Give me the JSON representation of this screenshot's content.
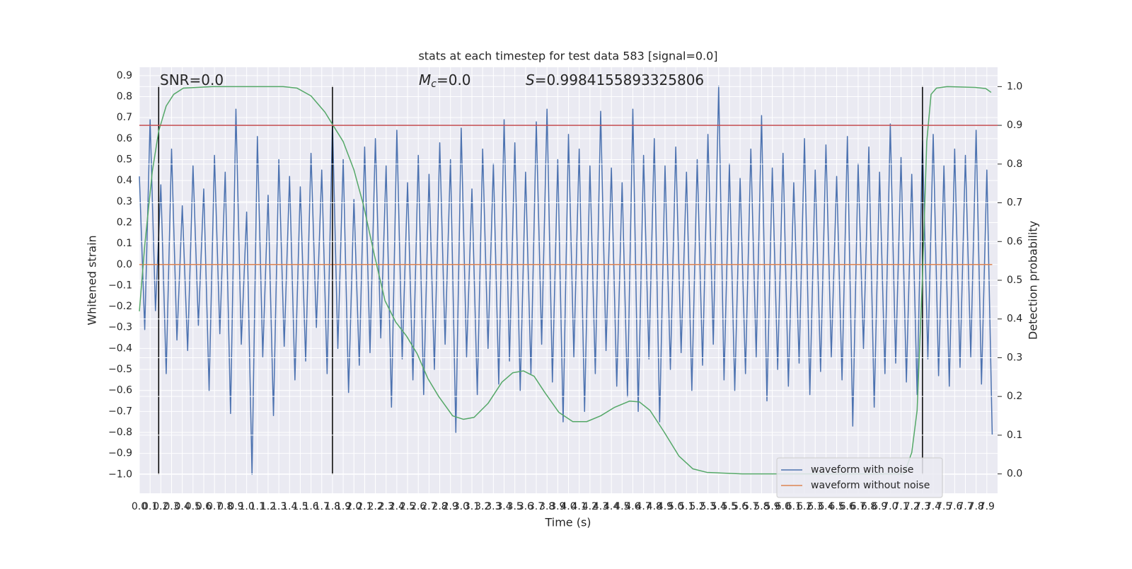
{
  "chart_data": {
    "type": "line",
    "title": "stats at each timestep for test data 583 [signal=0.0]",
    "x_label": "Time (s)",
    "y_label": "Whitened strain",
    "y2_label": "Detection probability",
    "annotations": [
      {
        "text": "SNR=0.0"
      },
      {
        "symbol": "M",
        "subscript": "c",
        "text": "=0.0"
      },
      {
        "symbol": "S",
        "text": "=0.9984155893325806"
      }
    ],
    "xlim": [
      0,
      8.0
    ],
    "ylim": [
      -1.09,
      0.94
    ],
    "y2lim": [
      -0.05,
      1.05
    ],
    "grid": true,
    "legend": "lower right",
    "xticks": [
      {
        "value": 0,
        "label": "0.0"
      },
      0.1,
      0.2,
      0.3,
      0.4,
      0.5,
      0.6,
      0.7,
      0.8,
      0.9,
      {
        "value": 1,
        "label": "1.0"
      },
      1.1,
      1.2,
      1.3,
      1.4,
      1.5,
      1.6,
      1.7,
      1.8,
      1.9,
      {
        "value": 2,
        "label": "2.0"
      },
      2.1,
      2.2,
      2.3,
      2.4,
      2.5,
      2.6,
      2.7,
      2.8,
      2.9,
      {
        "value": 3,
        "label": "3.0"
      },
      3.1,
      3.2,
      3.3,
      3.4,
      3.5,
      3.6,
      3.7,
      3.8,
      3.9,
      {
        "value": 4,
        "label": "4.0"
      },
      4.1,
      4.2,
      4.3,
      4.4,
      4.5,
      4.6,
      4.7,
      4.8,
      4.9,
      {
        "value": 5,
        "label": "5.0"
      },
      5.1,
      5.2,
      5.3,
      5.4,
      5.5,
      5.6,
      5.7,
      5.8,
      5.9,
      {
        "value": 6,
        "label": "6.0"
      },
      6.1,
      6.2,
      6.3,
      6.4,
      6.5,
      6.6,
      6.7,
      6.8,
      6.9,
      {
        "value": 7,
        "label": "7.0"
      },
      7.1,
      7.2,
      7.3,
      7.4,
      7.5,
      7.6,
      7.7,
      7.8,
      7.9
    ],
    "yticks": [
      0.9,
      0.8,
      0.7,
      0.6,
      0.5,
      0.4,
      0.3,
      0.2,
      0.1,
      {
        "value": 0,
        "label": "0.0"
      },
      {
        "value": -0.1,
        "label": "−0.1"
      },
      {
        "value": -0.2,
        "label": "−0.2"
      },
      {
        "value": -0.3,
        "label": "−0.3"
      },
      {
        "value": -0.4,
        "label": "−0.4"
      },
      {
        "value": -0.5,
        "label": "−0.5"
      },
      {
        "value": -0.6,
        "label": "−0.6"
      },
      {
        "value": -0.7,
        "label": "−0.7"
      },
      {
        "value": -0.8,
        "label": "−0.8"
      },
      {
        "value": -0.9,
        "label": "−0.9"
      },
      {
        "value": -1.0,
        "label": "−1.0"
      }
    ],
    "y2ticks": [
      {
        "value": 0,
        "label": "0.0"
      },
      0.1,
      0.2,
      0.3,
      0.4,
      0.5,
      0.6,
      0.7,
      0.8,
      0.9,
      {
        "value": 1,
        "label": "1.0"
      }
    ],
    "series": [
      {
        "name": "waveform with noise",
        "color": "#4c72b0",
        "x": [
          0,
          0.05,
          0.1,
          0.15,
          0.2,
          0.25,
          0.3,
          0.35,
          0.4,
          0.45,
          0.5,
          0.55,
          0.6,
          0.65,
          0.7,
          0.75,
          0.8,
          0.85,
          0.9,
          0.95,
          1,
          1.05,
          1.1,
          1.15,
          1.2,
          1.25,
          1.3,
          1.35,
          1.4,
          1.45,
          1.5,
          1.55,
          1.6,
          1.65,
          1.7,
          1.75,
          1.8,
          1.85,
          1.9,
          1.95,
          2,
          2.05,
          2.1,
          2.15,
          2.2,
          2.25,
          2.3,
          2.35,
          2.4,
          2.45,
          2.5,
          2.55,
          2.6,
          2.65,
          2.7,
          2.75,
          2.8,
          2.85,
          2.9,
          2.95,
          3,
          3.05,
          3.1,
          3.15,
          3.2,
          3.25,
          3.3,
          3.35,
          3.4,
          3.45,
          3.5,
          3.55,
          3.6,
          3.65,
          3.7,
          3.75,
          3.8,
          3.85,
          3.9,
          3.95,
          4,
          4.05,
          4.1,
          4.15,
          4.2,
          4.25,
          4.3,
          4.35,
          4.4,
          4.45,
          4.5,
          4.55,
          4.6,
          4.65,
          4.7,
          4.75,
          4.8,
          4.85,
          4.9,
          4.95,
          5,
          5.05,
          5.1,
          5.15,
          5.2,
          5.25,
          5.3,
          5.35,
          5.4,
          5.45,
          5.5,
          5.55,
          5.6,
          5.65,
          5.7,
          5.75,
          5.8,
          5.85,
          5.9,
          5.95,
          6,
          6.05,
          6.1,
          6.15,
          6.2,
          6.25,
          6.3,
          6.35,
          6.4,
          6.45,
          6.5,
          6.55,
          6.6,
          6.65,
          6.7,
          6.75,
          6.8,
          6.85,
          6.9,
          6.95,
          7,
          7.05,
          7.1,
          7.15,
          7.2,
          7.25,
          7.3,
          7.35,
          7.4,
          7.45,
          7.5,
          7.55,
          7.6,
          7.65,
          7.7,
          7.75,
          7.8,
          7.85,
          7.9,
          7.95
        ],
        "values": [
          0.42,
          -0.31,
          0.69,
          -0.22,
          0.38,
          -0.52,
          0.55,
          -0.36,
          0.28,
          -0.41,
          0.47,
          -0.29,
          0.36,
          -0.6,
          0.52,
          -0.33,
          0.44,
          -0.71,
          0.74,
          -0.38,
          0.25,
          -1.0,
          0.61,
          -0.44,
          0.33,
          -0.72,
          0.5,
          -0.39,
          0.42,
          -0.55,
          0.37,
          -0.46,
          0.53,
          -0.3,
          0.45,
          -0.52,
          0.68,
          -0.4,
          0.5,
          -0.61,
          0.31,
          -0.48,
          0.56,
          -0.42,
          0.6,
          -0.35,
          0.47,
          -0.68,
          0.64,
          -0.45,
          0.39,
          -0.55,
          0.52,
          -0.62,
          0.43,
          -0.5,
          0.58,
          -0.38,
          0.5,
          -0.8,
          0.65,
          -0.44,
          0.36,
          -0.62,
          0.55,
          -0.4,
          0.48,
          -0.57,
          0.69,
          -0.46,
          0.58,
          -0.6,
          0.44,
          -0.52,
          0.68,
          -0.38,
          0.74,
          -0.56,
          0.5,
          -0.75,
          0.62,
          -0.44,
          0.55,
          -0.7,
          0.47,
          -0.52,
          0.73,
          -0.41,
          0.46,
          -0.58,
          0.39,
          -0.63,
          0.74,
          -0.7,
          0.52,
          -0.45,
          0.6,
          -0.75,
          0.47,
          -0.5,
          0.56,
          -0.42,
          0.44,
          -0.6,
          0.5,
          -0.48,
          0.62,
          -0.38,
          0.85,
          -0.55,
          0.48,
          -0.6,
          0.41,
          -0.52,
          0.55,
          -0.44,
          0.71,
          -0.65,
          0.46,
          -0.5,
          0.53,
          -0.58,
          0.39,
          -0.47,
          0.6,
          -0.62,
          0.45,
          -0.51,
          0.57,
          -0.44,
          0.42,
          -0.55,
          0.61,
          -0.77,
          0.48,
          -0.4,
          0.56,
          -0.68,
          0.44,
          -0.52,
          0.67,
          -0.47,
          0.51,
          -0.56,
          0.43,
          -0.62,
          0.59,
          -0.45,
          0.62,
          -0.53,
          0.47,
          -0.58,
          0.55,
          -0.49,
          0.52,
          -0.44,
          0.64,
          -0.57,
          0.45,
          -0.81
        ]
      },
      {
        "name": "waveform without noise",
        "color": "#dd8452",
        "x": [
          0,
          7.95
        ],
        "values": [
          0,
          0
        ]
      },
      {
        "color": "#55a868",
        "axis": "y2",
        "x": [
          0,
          0.05,
          0.12,
          0.18,
          0.25,
          0.32,
          0.41,
          0.68,
          1.34,
          1.47,
          1.6,
          1.73,
          1.81,
          1.9,
          2.0,
          2.09,
          2.19,
          2.29,
          2.39,
          2.49,
          2.59,
          2.69,
          2.79,
          2.92,
          3.02,
          3.12,
          3.25,
          3.38,
          3.48,
          3.58,
          3.68,
          3.78,
          3.91,
          4.04,
          4.17,
          4.3,
          4.43,
          4.57,
          4.66,
          4.76,
          4.89,
          5.03,
          5.16,
          5.29,
          5.62,
          7.13,
          7.2,
          7.25,
          7.3,
          7.34,
          7.38,
          7.43,
          7.53,
          7.79,
          7.89,
          7.94
        ],
        "values": [
          0.42,
          0.59,
          0.78,
          0.885,
          0.95,
          0.98,
          0.996,
          1.0,
          1.0,
          0.996,
          0.976,
          0.934,
          0.898,
          0.858,
          0.785,
          0.693,
          0.566,
          0.447,
          0.392,
          0.356,
          0.31,
          0.246,
          0.2,
          0.15,
          0.141,
          0.146,
          0.182,
          0.237,
          0.261,
          0.266,
          0.252,
          0.21,
          0.159,
          0.135,
          0.135,
          0.15,
          0.172,
          0.188,
          0.186,
          0.164,
          0.109,
          0.046,
          0.013,
          0.004,
          0.0,
          0.0,
          0.055,
          0.164,
          0.51,
          0.858,
          0.98,
          0.996,
          1.0,
          0.998,
          0.995,
          0.985
        ]
      }
    ],
    "hlines": [
      {
        "y": 0.9,
        "axis": "y2",
        "color": "#c44e52"
      }
    ],
    "vlines": {
      "x": [
        0.18,
        1.8,
        7.3
      ],
      "ymin": -1.0,
      "ymax": 0.85,
      "color": "#000000"
    }
  }
}
